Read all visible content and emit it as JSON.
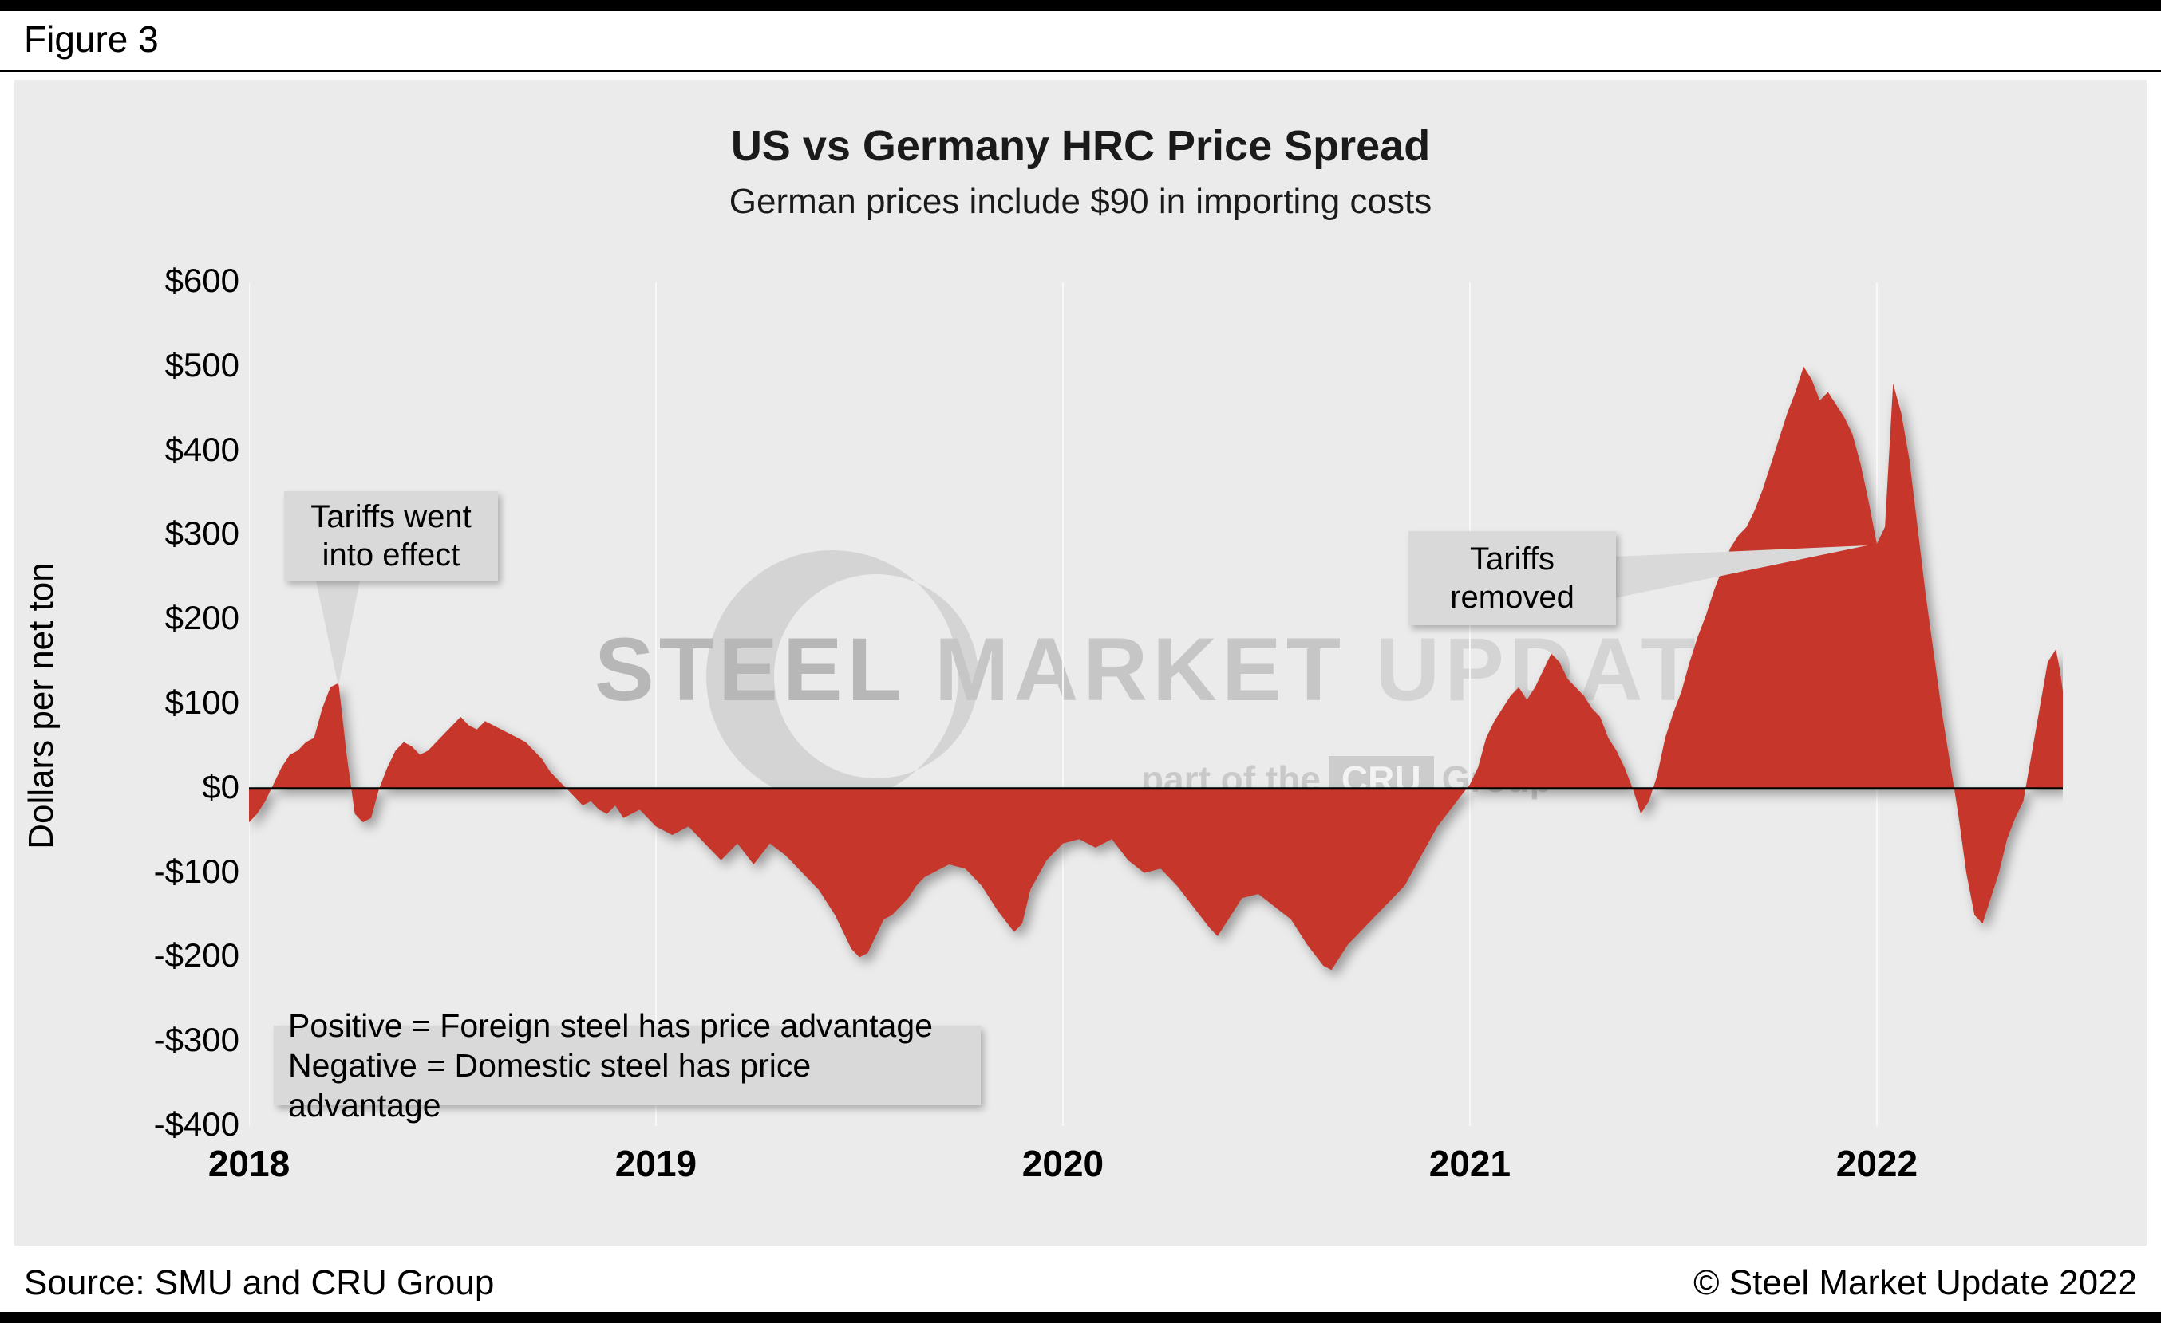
{
  "figure_label": "Figure 3",
  "chart_data": {
    "type": "area",
    "title": "US vs Germany HRC Price Spread",
    "subtitle": "German prices include $90 in importing costs",
    "ylabel": "Dollars per net ton",
    "ylim": [
      -400,
      600
    ],
    "ytick_step": 100,
    "ytick_labels": [
      "$600",
      "$500",
      "$400",
      "$300",
      "$200",
      "$100",
      "$0",
      "-$100",
      "-$200",
      "-$300",
      "-$400"
    ],
    "xticks": [
      2018,
      2019,
      2020,
      2021,
      2022
    ],
    "x_range": [
      2018,
      2022.457
    ],
    "baseline": 0,
    "grid": "vertical-year-lines",
    "legend": "none",
    "series_name": "US minus Germany HRC price spread ($/net ton)",
    "series_color": "#c6362b",
    "points": [
      [
        2018.0,
        -40
      ],
      [
        2018.02,
        -30
      ],
      [
        2018.04,
        -15
      ],
      [
        2018.06,
        5
      ],
      [
        2018.08,
        25
      ],
      [
        2018.1,
        40
      ],
      [
        2018.12,
        45
      ],
      [
        2018.14,
        55
      ],
      [
        2018.16,
        60
      ],
      [
        2018.18,
        95
      ],
      [
        2018.2,
        120
      ],
      [
        2018.22,
        125
      ],
      [
        2018.24,
        40
      ],
      [
        2018.26,
        -30
      ],
      [
        2018.28,
        -40
      ],
      [
        2018.3,
        -35
      ],
      [
        2018.32,
        0
      ],
      [
        2018.34,
        25
      ],
      [
        2018.36,
        45
      ],
      [
        2018.38,
        55
      ],
      [
        2018.4,
        50
      ],
      [
        2018.42,
        40
      ],
      [
        2018.44,
        45
      ],
      [
        2018.46,
        55
      ],
      [
        2018.48,
        65
      ],
      [
        2018.5,
        75
      ],
      [
        2018.52,
        85
      ],
      [
        2018.54,
        75
      ],
      [
        2018.56,
        70
      ],
      [
        2018.58,
        80
      ],
      [
        2018.6,
        75
      ],
      [
        2018.62,
        70
      ],
      [
        2018.64,
        65
      ],
      [
        2018.66,
        60
      ],
      [
        2018.68,
        55
      ],
      [
        2018.7,
        45
      ],
      [
        2018.72,
        35
      ],
      [
        2018.74,
        20
      ],
      [
        2018.76,
        10
      ],
      [
        2018.78,
        0
      ],
      [
        2018.8,
        -10
      ],
      [
        2018.82,
        -20
      ],
      [
        2018.84,
        -15
      ],
      [
        2018.86,
        -25
      ],
      [
        2018.88,
        -30
      ],
      [
        2018.9,
        -20
      ],
      [
        2018.92,
        -35
      ],
      [
        2018.94,
        -30
      ],
      [
        2018.96,
        -25
      ],
      [
        2018.98,
        -35
      ],
      [
        2019.0,
        -45
      ],
      [
        2019.04,
        -55
      ],
      [
        2019.08,
        -45
      ],
      [
        2019.12,
        -65
      ],
      [
        2019.16,
        -85
      ],
      [
        2019.2,
        -65
      ],
      [
        2019.24,
        -90
      ],
      [
        2019.28,
        -65
      ],
      [
        2019.32,
        -80
      ],
      [
        2019.36,
        -100
      ],
      [
        2019.4,
        -120
      ],
      [
        2019.44,
        -150
      ],
      [
        2019.48,
        -190
      ],
      [
        2019.5,
        -200
      ],
      [
        2019.52,
        -195
      ],
      [
        2019.54,
        -175
      ],
      [
        2019.56,
        -155
      ],
      [
        2019.58,
        -150
      ],
      [
        2019.6,
        -140
      ],
      [
        2019.62,
        -130
      ],
      [
        2019.64,
        -115
      ],
      [
        2019.66,
        -105
      ],
      [
        2019.68,
        -100
      ],
      [
        2019.7,
        -95
      ],
      [
        2019.72,
        -90
      ],
      [
        2019.76,
        -95
      ],
      [
        2019.8,
        -115
      ],
      [
        2019.84,
        -145
      ],
      [
        2019.88,
        -170
      ],
      [
        2019.9,
        -160
      ],
      [
        2019.92,
        -120
      ],
      [
        2019.96,
        -85
      ],
      [
        2020.0,
        -65
      ],
      [
        2020.04,
        -60
      ],
      [
        2020.08,
        -70
      ],
      [
        2020.12,
        -60
      ],
      [
        2020.16,
        -85
      ],
      [
        2020.2,
        -100
      ],
      [
        2020.24,
        -95
      ],
      [
        2020.28,
        -115
      ],
      [
        2020.32,
        -140
      ],
      [
        2020.36,
        -165
      ],
      [
        2020.38,
        -175
      ],
      [
        2020.4,
        -160
      ],
      [
        2020.44,
        -130
      ],
      [
        2020.48,
        -125
      ],
      [
        2020.52,
        -140
      ],
      [
        2020.56,
        -155
      ],
      [
        2020.6,
        -185
      ],
      [
        2020.64,
        -210
      ],
      [
        2020.66,
        -215
      ],
      [
        2020.68,
        -200
      ],
      [
        2020.7,
        -185
      ],
      [
        2020.72,
        -175
      ],
      [
        2020.76,
        -155
      ],
      [
        2020.8,
        -135
      ],
      [
        2020.84,
        -115
      ],
      [
        2020.88,
        -80
      ],
      [
        2020.92,
        -45
      ],
      [
        2020.96,
        -20
      ],
      [
        2021.0,
        5
      ],
      [
        2021.02,
        25
      ],
      [
        2021.04,
        60
      ],
      [
        2021.06,
        80
      ],
      [
        2021.08,
        95
      ],
      [
        2021.1,
        110
      ],
      [
        2021.12,
        120
      ],
      [
        2021.14,
        105
      ],
      [
        2021.16,
        120
      ],
      [
        2021.18,
        140
      ],
      [
        2021.2,
        160
      ],
      [
        2021.22,
        150
      ],
      [
        2021.24,
        130
      ],
      [
        2021.26,
        120
      ],
      [
        2021.28,
        110
      ],
      [
        2021.3,
        95
      ],
      [
        2021.32,
        85
      ],
      [
        2021.34,
        60
      ],
      [
        2021.36,
        45
      ],
      [
        2021.38,
        25
      ],
      [
        2021.4,
        0
      ],
      [
        2021.42,
        -30
      ],
      [
        2021.44,
        -15
      ],
      [
        2021.46,
        15
      ],
      [
        2021.48,
        60
      ],
      [
        2021.5,
        90
      ],
      [
        2021.52,
        115
      ],
      [
        2021.54,
        150
      ],
      [
        2021.56,
        180
      ],
      [
        2021.58,
        205
      ],
      [
        2021.6,
        235
      ],
      [
        2021.62,
        260
      ],
      [
        2021.64,
        285
      ],
      [
        2021.66,
        300
      ],
      [
        2021.68,
        310
      ],
      [
        2021.7,
        330
      ],
      [
        2021.72,
        355
      ],
      [
        2021.74,
        385
      ],
      [
        2021.76,
        415
      ],
      [
        2021.78,
        445
      ],
      [
        2021.8,
        470
      ],
      [
        2021.82,
        500
      ],
      [
        2021.84,
        485
      ],
      [
        2021.86,
        460
      ],
      [
        2021.88,
        470
      ],
      [
        2021.9,
        455
      ],
      [
        2021.92,
        440
      ],
      [
        2021.94,
        420
      ],
      [
        2021.96,
        385
      ],
      [
        2021.98,
        340
      ],
      [
        2022.0,
        290
      ],
      [
        2022.02,
        310
      ],
      [
        2022.04,
        480
      ],
      [
        2022.06,
        445
      ],
      [
        2022.08,
        390
      ],
      [
        2022.1,
        310
      ],
      [
        2022.12,
        230
      ],
      [
        2022.14,
        160
      ],
      [
        2022.16,
        90
      ],
      [
        2022.18,
        30
      ],
      [
        2022.2,
        -30
      ],
      [
        2022.22,
        -100
      ],
      [
        2022.24,
        -150
      ],
      [
        2022.26,
        -160
      ],
      [
        2022.28,
        -130
      ],
      [
        2022.3,
        -100
      ],
      [
        2022.32,
        -60
      ],
      [
        2022.34,
        -35
      ],
      [
        2022.36,
        -15
      ],
      [
        2022.38,
        40
      ],
      [
        2022.4,
        95
      ],
      [
        2022.42,
        150
      ],
      [
        2022.44,
        165
      ],
      [
        2022.45,
        140
      ],
      [
        2022.457,
        115
      ]
    ]
  },
  "annotations": {
    "tariffs_effect": "Tariffs went\ninto effect",
    "tariffs_removed": "Tariffs\nremoved",
    "note": "Positive = Foreign steel has price advantage\nNegative = Domestic steel has price advantage"
  },
  "watermark": {
    "word1": "STEEL",
    "word2": "MARKET",
    "word3": "UPDATE",
    "tagline_pre": "part of the",
    "tagline_box": "CRU",
    "tagline_post": "Group"
  },
  "footer": {
    "source": "Source: SMU and CRU Group",
    "copyright": "© Steel Market Update 2022"
  },
  "colors": {
    "area": "#c6362b",
    "panel_bg": "#ebebeb",
    "callout_bg": "#d9d9d9",
    "zero_line": "#000000",
    "gridline": "#f8f8f8"
  }
}
